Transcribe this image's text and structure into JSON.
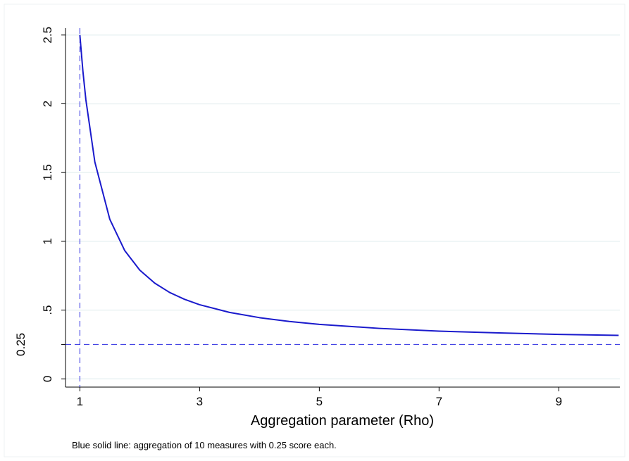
{
  "chart_data": {
    "type": "line",
    "x_label": "Aggregation parameter (Rho)",
    "note": "Blue solid line: aggregation of 10 measures with 0.25 score each.",
    "x": [
      1,
      1.05,
      1.1,
      1.25,
      1.5,
      1.75,
      2,
      2.25,
      2.5,
      2.75,
      3,
      3.5,
      4,
      4.5,
      5,
      6,
      7,
      8,
      9,
      10
    ],
    "series": [
      {
        "color": "#1a1acc",
        "values": [
          2.5,
          2.24,
          2.03,
          1.577,
          1.16,
          0.932,
          0.791,
          0.696,
          0.628,
          0.578,
          0.539,
          0.483,
          0.445,
          0.417,
          0.396,
          0.367,
          0.347,
          0.334,
          0.323,
          0.316
        ]
      }
    ],
    "xlim": [
      0.76,
      10.02
    ],
    "ylim": [
      -0.06,
      2.55
    ],
    "xticks": [
      1,
      3,
      5,
      7,
      9
    ],
    "yticks": [
      0,
      {
        "value": 0.5,
        "label": ".5"
      },
      1,
      1.5,
      2,
      2.5
    ],
    "grid": true,
    "reference_lines": {
      "x": 1,
      "y": 0.25,
      "color": "#2a2ae0"
    }
  }
}
